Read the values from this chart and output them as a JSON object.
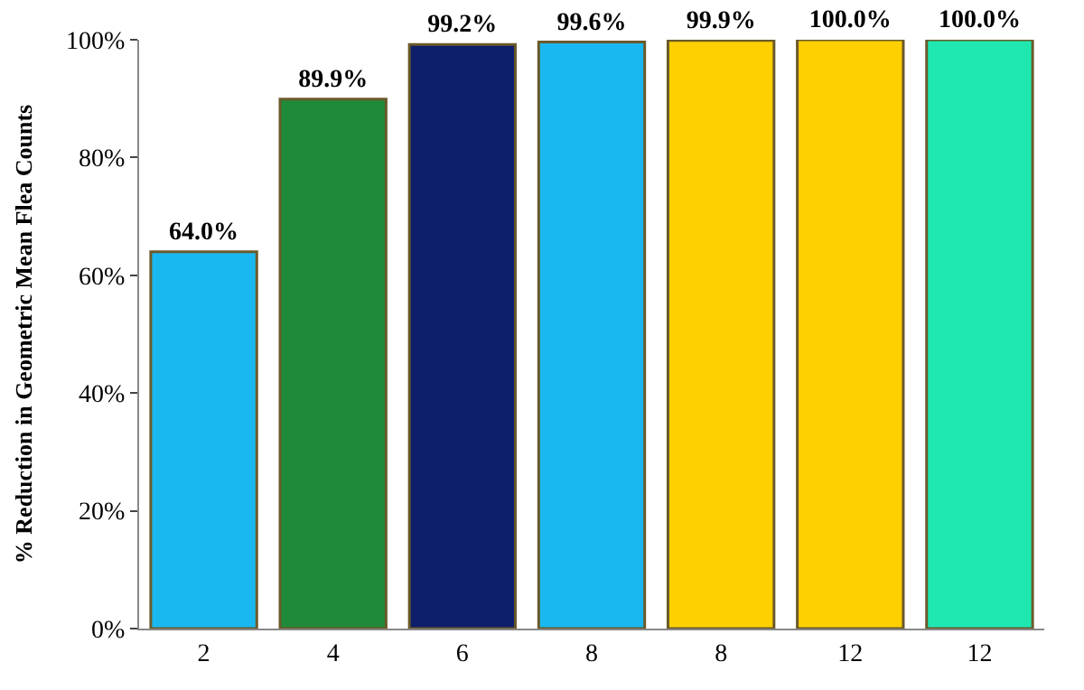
{
  "chart_data": {
    "type": "bar",
    "ylabel": "% Reduction in Geometric Mean Flea Counts",
    "categories": [
      "2",
      "4",
      "6",
      "8",
      "8",
      "12",
      "12"
    ],
    "values": [
      64.0,
      89.9,
      99.2,
      99.6,
      99.9,
      100.0,
      100.0
    ],
    "value_labels": [
      "64.0%",
      "89.9%",
      "99.2%",
      "99.6%",
      "99.9%",
      "100.0%",
      "100.0%"
    ],
    "colors": [
      "#1ab8f0",
      "#1e8a3a",
      "#0d1f6b",
      "#1ab8f0",
      "#ffd000",
      "#ffd000",
      "#1ee8b0"
    ],
    "ylim": [
      0,
      100
    ],
    "yticks": [
      {
        "value": 0,
        "label": "0%"
      },
      {
        "value": 20,
        "label": "20%"
      },
      {
        "value": 40,
        "label": "40%"
      },
      {
        "value": 60,
        "label": "60%"
      },
      {
        "value": 80,
        "label": "80%"
      },
      {
        "value": 100,
        "label": "100%"
      }
    ]
  }
}
